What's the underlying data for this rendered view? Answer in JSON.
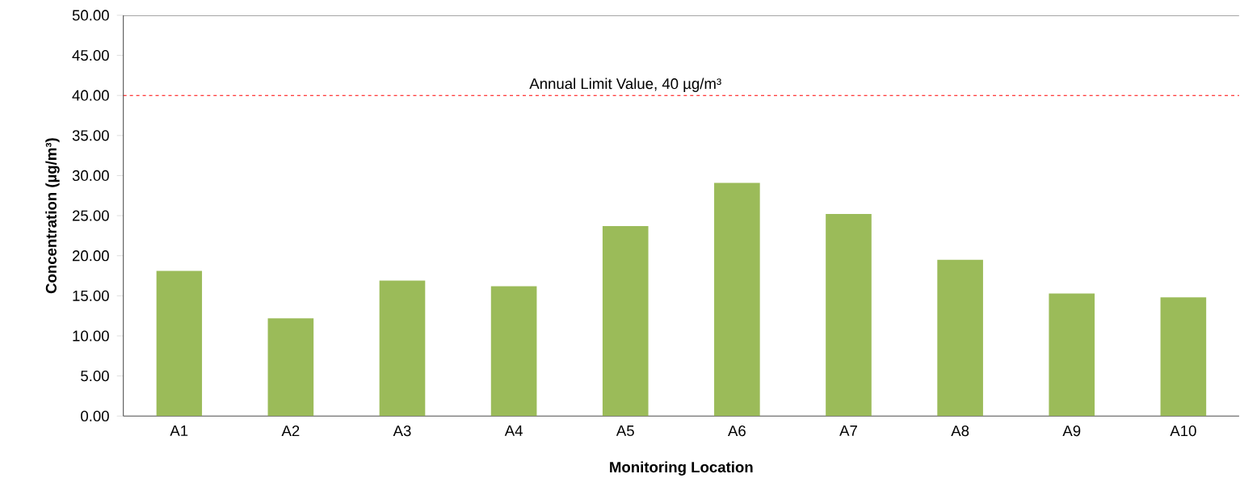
{
  "chart_data": {
    "type": "bar",
    "xlabel": "Monitoring Location",
    "ylabel": "Concentration (µg/m³)",
    "categories": [
      "A1",
      "A2",
      "A3",
      "A4",
      "A5",
      "A6",
      "A7",
      "A8",
      "A9",
      "A10"
    ],
    "values": [
      18.1,
      12.2,
      16.9,
      16.2,
      23.7,
      29.1,
      25.2,
      19.5,
      15.3,
      14.8
    ],
    "color": "#9bbb59",
    "ylim": [
      0,
      50
    ],
    "yticks": [
      {
        "value": 0,
        "label": "0.00"
      },
      {
        "value": 5,
        "label": "5.00"
      },
      {
        "value": 10,
        "label": "10.00"
      },
      {
        "value": 15,
        "label": "15.00"
      },
      {
        "value": 20,
        "label": "20.00"
      },
      {
        "value": 25,
        "label": "25.00"
      },
      {
        "value": 30,
        "label": "30.00"
      },
      {
        "value": 35,
        "label": "35.00"
      },
      {
        "value": 40,
        "label": "40.00"
      },
      {
        "value": 45,
        "label": "45.00"
      },
      {
        "value": 50,
        "label": "50.00"
      }
    ],
    "ref_lines": [
      {
        "axis": "y",
        "value": 40,
        "label": "Annual Limit Value, 40 µg/m³",
        "color": "#ff0000",
        "line_style": "dashed"
      }
    ],
    "grid": false
  }
}
